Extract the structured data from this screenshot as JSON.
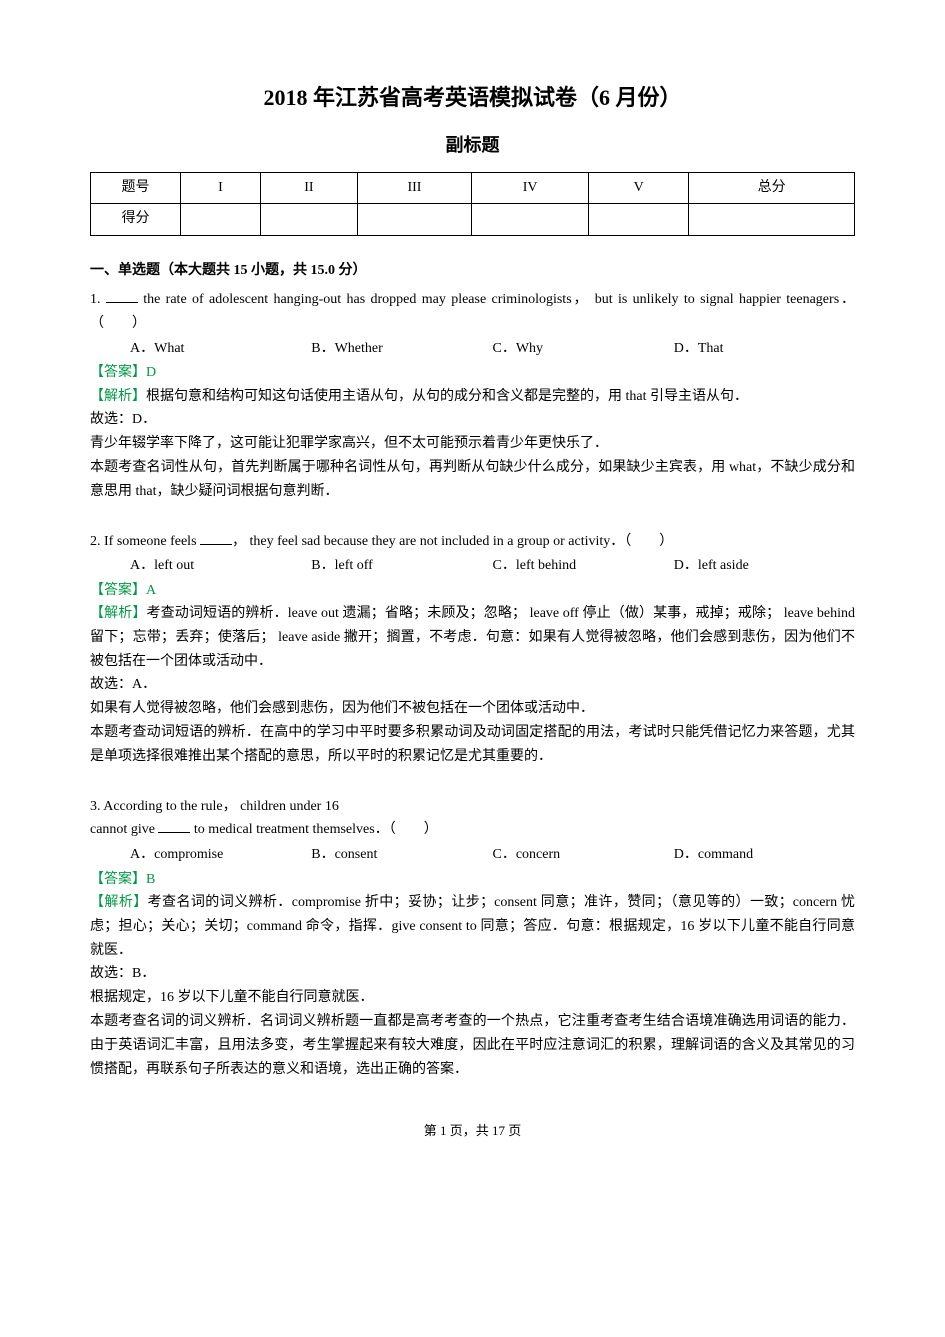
{
  "title": "2018 年江苏省高考英语模拟试卷（6 月份）",
  "subtitle": "副标题",
  "scoreTable": {
    "row1": [
      "题号",
      "I",
      "II",
      "III",
      "IV",
      "V",
      "总分"
    ],
    "row2Label": "得分"
  },
  "sectionTitle": "一、单选题（本大题共 15 小题，共 15.0 分）",
  "questions": [
    {
      "num": "1.",
      "stem_pre": "",
      "stem_post": " the rate of adolescent hanging-out has dropped may please criminologists， but is unlikely to signal happier teenagers．（　　）",
      "options": [
        "A．What",
        "B．Whether",
        "C．Why",
        "D．That"
      ],
      "answer": "【答案】D",
      "analysis": "【解析】根据句意和结构可知这句话使用主语从句，从句的成分和含义都是完整的，用 that 引导主语从句．\n故选：D．\n青少年辍学率下降了，这可能让犯罪学家高兴，但不太可能预示着青少年更快乐了．\n本题考查名词性从句，首先判断属于哪种名词性从句，再判断从句缺少什么成分，如果缺少主宾表，用 what，不缺少成分和意思用 that，缺少疑问词根据句意判断．"
    },
    {
      "num": "2.",
      "stem_pre": "If someone feels ",
      "stem_post": "， they feel sad because they are not included in a group or activity．（　　）",
      "options": [
        "A．left out",
        "B．left off",
        "C．left behind",
        "D．left aside"
      ],
      "answer": "【答案】A",
      "analysis": "【解析】考查动词短语的辨析．leave out 遗漏；省略；未顾及；忽略； leave off 停止（做）某事，戒掉；戒除； leave behind 留下；忘带；丢弃；使落后； leave aside 撇开；搁置，不考虑．句意：如果有人觉得被忽略，他们会感到悲伤，因为他们不被包括在一个团体或活动中．\n故选：A．\n如果有人觉得被忽略，他们会感到悲伤，因为他们不被包括在一个团体或活动中．\n本题考查动词短语的辨析．在高中的学习中平时要多积累动词及动词固定搭配的用法，考试时只能凭借记忆力来答题，尤其是单项选择很难推出某个搭配的意思，所以平时的积累记忆是尤其重要的．"
    },
    {
      "num": "3.",
      "stem_pre": "According to the rule， children under 16\ncannot give ",
      "stem_post": " to medical treatment themselves．（　　）",
      "options": [
        "A．compromise",
        "B．consent",
        "C．concern",
        "D．command"
      ],
      "answer": "【答案】B",
      "analysis": "【解析】考查名词的词义辨析．compromise 折中；妥协；让步；consent 同意；准许，赞同；（意见等的）一致；concern 忧虑；担心；关心；关切；command 命令，指挥．give consent to 同意；答应．句意：根据规定，16 岁以下儿童不能自行同意就医．\n故选：B．\n根据规定，16 岁以下儿童不能自行同意就医．\n本题考查名词的词义辨析．名词词义辨析题一直都是高考考查的一个热点，它注重考查考生结合语境准确选用词语的能力．由于英语词汇丰富，且用法多变，考生掌握起来有较大难度，因此在平时应注意词汇的积累，理解词语的含义及其常见的习惯搭配，再联系句子所表达的意义和语境，选出正确的答案．"
    }
  ],
  "footer": "第 1 页，共 17 页",
  "colors": {
    "text": "#000000",
    "accent": "#009944",
    "background": "#ffffff",
    "border": "#000000"
  }
}
